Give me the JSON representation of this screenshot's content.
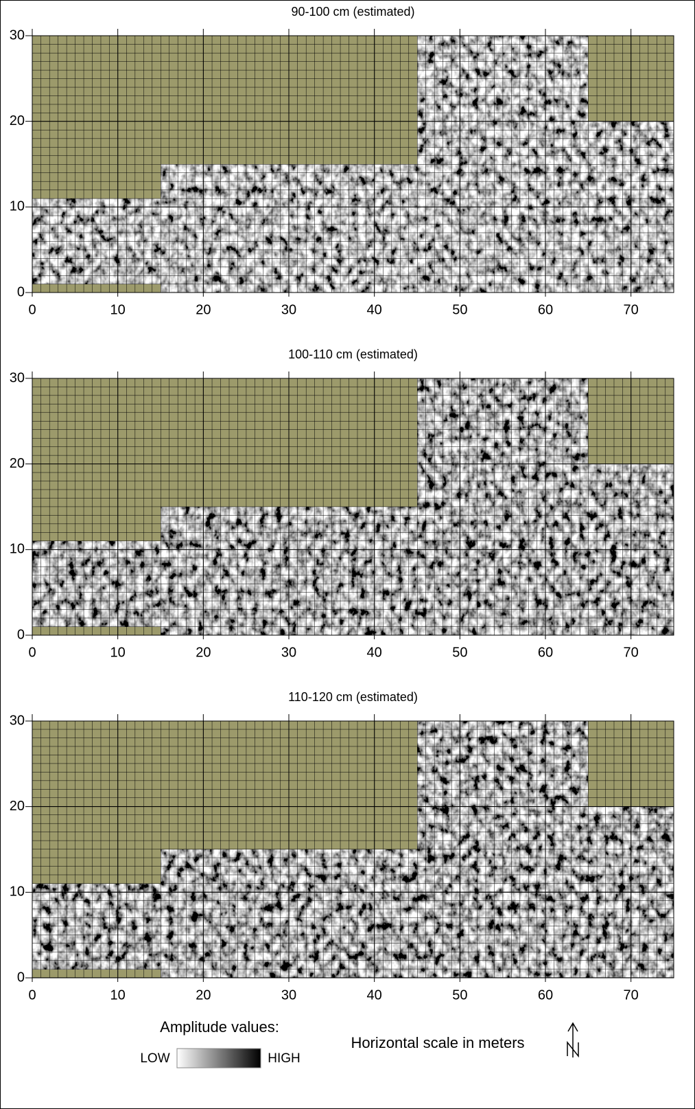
{
  "panels": [
    {
      "title": "90-100 cm (estimated)",
      "xlim": [
        0,
        75
      ],
      "ylim": [
        0,
        30
      ],
      "xticks": [
        0,
        10,
        20,
        30,
        40,
        50,
        60,
        70
      ],
      "yticks": [
        0,
        10,
        20,
        30
      ]
    },
    {
      "title": "100-110 cm (estimated)",
      "xlim": [
        0,
        75
      ],
      "ylim": [
        0,
        30
      ],
      "xticks": [
        0,
        10,
        20,
        30,
        40,
        50,
        60,
        70
      ],
      "yticks": [
        0,
        10,
        20,
        30
      ]
    },
    {
      "title": "110-120 cm (estimated)",
      "xlim": [
        0,
        75
      ],
      "ylim": [
        0,
        30
      ],
      "xticks": [
        0,
        10,
        20,
        30,
        40,
        50,
        60,
        70
      ],
      "yticks": [
        0,
        10,
        20,
        30
      ]
    }
  ],
  "legend": {
    "title": "Amplitude values:",
    "low": "LOW",
    "high": "HIGH"
  },
  "scale_note": "Horizontal scale in meters"
}
